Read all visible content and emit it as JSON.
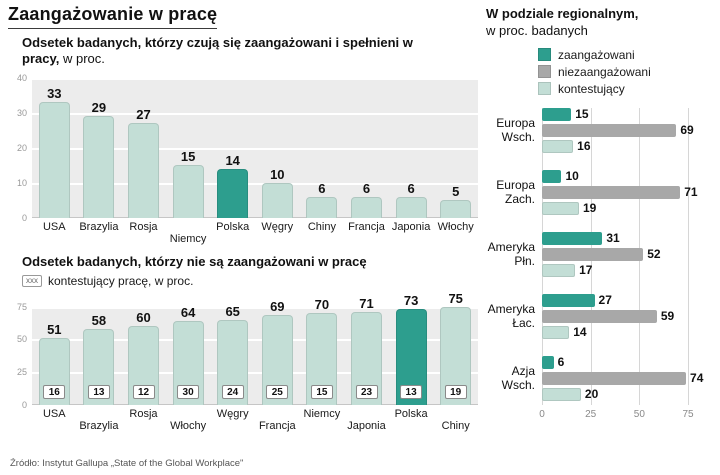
{
  "page_title": "Zaangażowanie w pracę",
  "source": "Źródło: Instytut Gallupa „State of the Global Workplace\"",
  "colors": {
    "engaged": "#2d9e8e",
    "not_engaged_gray": "#a8a8a8",
    "contesting_light": "#c3ded6",
    "plot_bg": "#ececec",
    "grid": "#ffffff"
  },
  "chart_data": [
    {
      "id": "engaged",
      "type": "bar",
      "title_bold": "Odsetek badanych, którzy czują się zaangażowani i spełnieni w pracy,",
      "title_note": "w proc.",
      "categories": [
        "USA",
        "Brazylia",
        "Rosja",
        "Niemcy",
        "Polska",
        "Węgry",
        "Chiny",
        "Francja",
        "Japonia",
        "Włochy"
      ],
      "values": [
        33,
        29,
        27,
        15,
        14,
        10,
        6,
        6,
        6,
        5
      ],
      "highlight": "Polska",
      "ylim": [
        0,
        40
      ],
      "yticks": [
        0,
        10,
        20,
        30,
        40
      ],
      "offset_labels": [
        "Niemcy"
      ]
    },
    {
      "id": "not-engaged",
      "type": "bar",
      "title_bold": "Odsetek badanych, którzy nie są zaangażowani w pracę",
      "legend_box": "xxx",
      "legend_label": "kontestujący pracę, w proc.",
      "categories": [
        "USA",
        "Brazylia",
        "Rosja",
        "Włochy",
        "Węgry",
        "Francja",
        "Niemcy",
        "Japonia",
        "Polska",
        "Chiny"
      ],
      "values": [
        51,
        58,
        60,
        64,
        65,
        69,
        70,
        71,
        73,
        75
      ],
      "box_values": [
        16,
        13,
        12,
        30,
        24,
        25,
        15,
        23,
        13,
        19
      ],
      "highlight": "Polska",
      "ylim": [
        0,
        75
      ],
      "yticks": [
        0,
        25,
        50,
        75
      ],
      "offset_labels": [
        "Brazylia",
        "Włochy",
        "Francja",
        "Japonia",
        "Chiny"
      ]
    },
    {
      "id": "regional",
      "type": "bar-horizontal",
      "title_bold": "W podziale regionalnym,",
      "title_note": "w proc. badanych",
      "legend": [
        {
          "label": "zaangażowani",
          "color_key": "engaged"
        },
        {
          "label": "niezaangażowani",
          "color_key": "not_engaged_gray"
        },
        {
          "label": "kontestujący",
          "color_key": "contesting_light"
        }
      ],
      "categories": [
        "Europa Wsch.",
        "Europa Zach.",
        "Ameryka Płn.",
        "Ameryka Łac.",
        "Azja Wsch."
      ],
      "series": [
        {
          "name": "zaangazowani",
          "values": [
            15,
            10,
            31,
            27,
            6
          ]
        },
        {
          "name": "niezaangazowani",
          "values": [
            69,
            71,
            52,
            59,
            74
          ]
        },
        {
          "name": "kontestujacy",
          "values": [
            16,
            19,
            17,
            14,
            20
          ]
        }
      ],
      "xlim": [
        0,
        75
      ],
      "xticks": [
        0,
        25,
        50,
        75
      ]
    }
  ]
}
